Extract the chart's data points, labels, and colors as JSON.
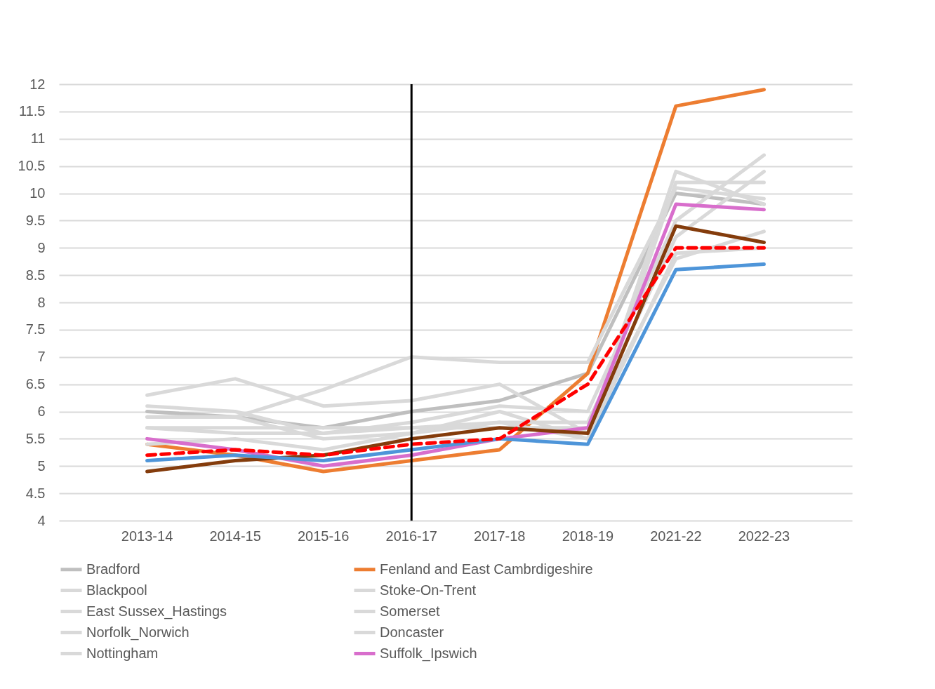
{
  "chart_data": {
    "type": "line",
    "categories": [
      "2013-14",
      "2014-15",
      "2015-16",
      "2016-17",
      "2017-18",
      "2018-19",
      "2021-22",
      "2022-23"
    ],
    "ylim": [
      4,
      12
    ],
    "yticks": [
      4,
      4.5,
      5,
      5.5,
      6,
      6.5,
      7,
      7.5,
      8,
      8.5,
      9,
      9.5,
      10,
      10.5,
      11,
      11.5,
      12
    ],
    "grid": "y",
    "legend": "bottom",
    "marker": "none",
    "line_style": "solid",
    "ref_lines": [
      {
        "axis": "x",
        "value": "2016-17",
        "color": "#000000"
      }
    ],
    "series": [
      {
        "name": "Bradford",
        "color": "#bfbfbf",
        "values": [
          6.0,
          5.9,
          5.7,
          6.0,
          6.2,
          6.7,
          10.0,
          9.8
        ]
      },
      {
        "name": "Fenland and East Cambrdigeshire",
        "color": "#ed7d31",
        "values": [
          5.4,
          5.2,
          4.9,
          5.1,
          5.3,
          6.7,
          11.6,
          11.9
        ]
      },
      {
        "name": "Blackpool",
        "color": "#d9d9d9",
        "values": [
          6.3,
          6.6,
          6.1,
          6.2,
          6.5,
          5.6,
          10.4,
          9.8
        ]
      },
      {
        "name": "Stoke-On-Trent",
        "color": "#d9d9d9",
        "values": [
          5.9,
          5.9,
          6.4,
          7.0,
          6.9,
          6.9,
          10.1,
          9.9
        ]
      },
      {
        "name": "East Sussex_Hastings",
        "color": "#d9d9d9",
        "values": [
          6.1,
          6.0,
          5.6,
          5.8,
          6.1,
          6.0,
          9.5,
          10.7
        ]
      },
      {
        "name": "Somerset",
        "color": "#d9d9d9",
        "values": [
          5.7,
          5.6,
          5.6,
          5.7,
          5.8,
          5.8,
          9.2,
          10.4
        ]
      },
      {
        "name": "Norfolk_Norwich",
        "color": "#d9d9d9",
        "values": [
          5.9,
          5.9,
          5.5,
          5.6,
          5.8,
          5.5,
          10.2,
          10.2
        ]
      },
      {
        "name": "Doncaster",
        "color": "#d9d9d9",
        "values": [
          5.7,
          5.7,
          5.7,
          5.7,
          5.7,
          5.7,
          8.8,
          9.3
        ]
      },
      {
        "name": "Nottingham",
        "color": "#d9d9d9",
        "values": [
          5.4,
          5.5,
          5.3,
          5.6,
          6.0,
          5.5,
          8.9,
          9.0
        ]
      },
      {
        "name": "Suffolk_Ipswich",
        "color": "#d86ecc",
        "values": [
          5.5,
          5.3,
          5.0,
          5.2,
          5.5,
          5.7,
          9.8,
          9.7
        ]
      },
      {
        "color": "#843c0c",
        "values": [
          4.9,
          5.1,
          5.2,
          5.5,
          5.7,
          5.6,
          9.4,
          9.1
        ]
      },
      {
        "color": "#4e95d9",
        "values": [
          5.1,
          5.2,
          5.1,
          5.3,
          5.5,
          5.4,
          8.6,
          8.7
        ]
      },
      {
        "color": "#ff0000",
        "line_style": "dashed",
        "values": [
          5.2,
          5.3,
          5.2,
          5.4,
          5.5,
          6.5,
          9.0,
          9.0
        ]
      }
    ]
  }
}
